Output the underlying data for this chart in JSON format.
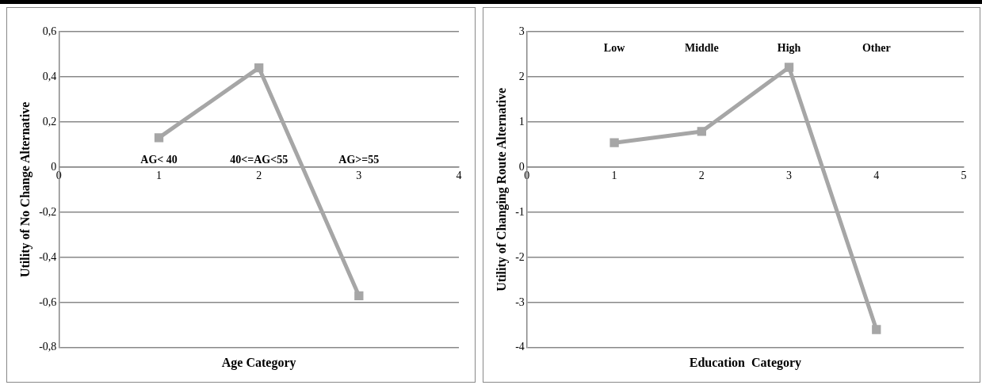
{
  "chart_data": [
    {
      "type": "line",
      "xlabel": "Age Category",
      "ylabel": "Utility of No Change Alternative",
      "x": [
        1,
        2,
        3
      ],
      "series": [
        {
          "color": "#a6a6a6",
          "values": [
            0.13,
            0.44,
            -0.57
          ]
        }
      ],
      "xlim": [
        0,
        4
      ],
      "xticks": [
        0,
        1,
        2,
        3,
        4
      ],
      "ylim": [
        -0.8,
        0.6
      ],
      "yticks": [
        {
          "value": -0.8,
          "label": "-0,8"
        },
        {
          "value": -0.6,
          "label": "-0,6"
        },
        {
          "value": -0.4,
          "label": "-0,4"
        },
        {
          "value": -0.2,
          "label": "-0,2"
        },
        0,
        {
          "value": 0.2,
          "label": "0,2"
        },
        {
          "value": 0.4,
          "label": "0,4"
        },
        {
          "value": 0.6,
          "label": "0,6"
        }
      ],
      "grid": "y",
      "marker": "square",
      "line_style": "solid",
      "legend": false,
      "annotations": [
        "AG< 40",
        "40<=AG<55",
        "AG>=55"
      ]
    },
    {
      "type": "line",
      "xlabel": "Education  Category",
      "ylabel": "Utility of Changing Route Alternative",
      "x": [
        1,
        2,
        3,
        4
      ],
      "series": [
        {
          "color": "#a6a6a6",
          "values": [
            0.54,
            0.79,
            2.21,
            -3.6
          ]
        }
      ],
      "xlim": [
        0,
        5
      ],
      "xticks": [
        0,
        1,
        2,
        3,
        4,
        5
      ],
      "ylim": [
        -4,
        3
      ],
      "yticks": [
        -4,
        -3,
        -2,
        -1,
        0,
        1,
        2,
        3
      ],
      "grid": "y",
      "marker": "square",
      "line_style": "solid",
      "legend": false,
      "annotations": [
        "Low",
        "Middle",
        "High",
        "Other"
      ]
    }
  ]
}
